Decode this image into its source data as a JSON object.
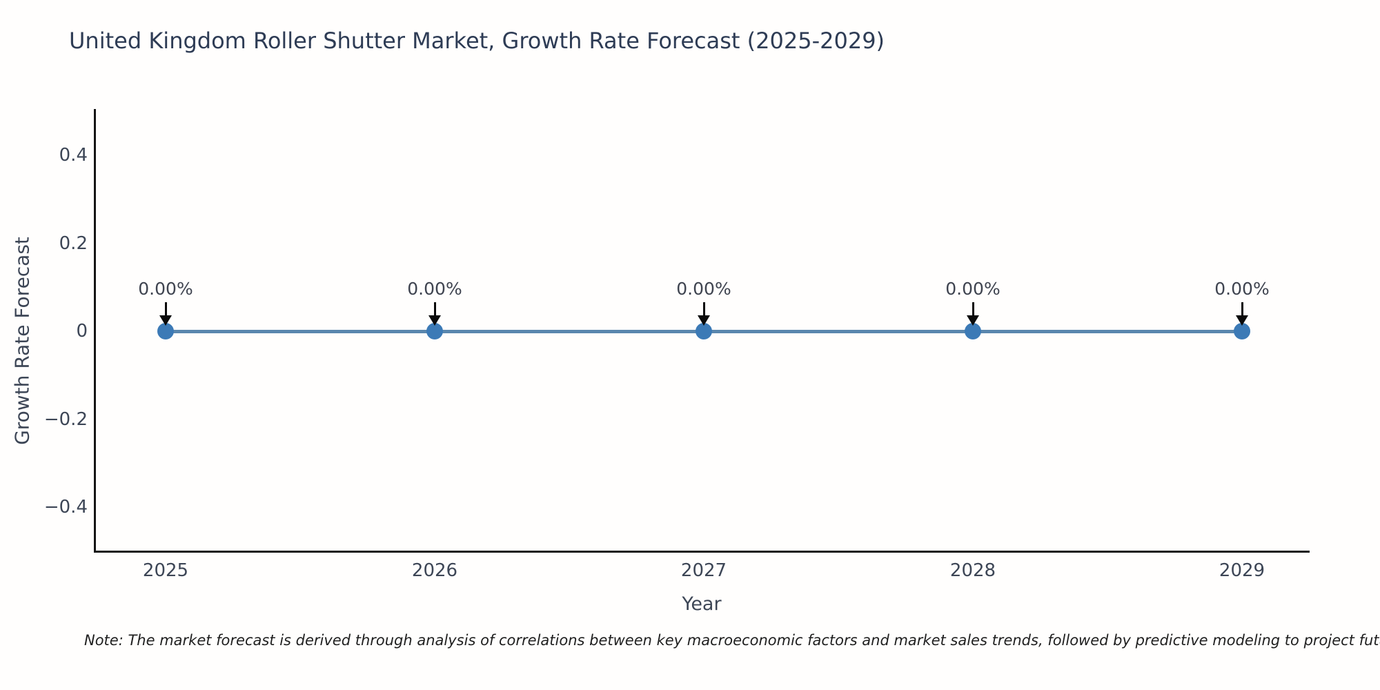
{
  "chart_data": {
    "type": "line",
    "title": "United Kingdom Roller Shutter Market, Growth Rate Forecast (2025-2029)",
    "xlabel": "Year",
    "ylabel": "Growth Rate Forecast",
    "categories": [
      "2025",
      "2026",
      "2027",
      "2028",
      "2029"
    ],
    "series": [
      {
        "name": "Growth Rate Forecast",
        "values": [
          0,
          0,
          0,
          0,
          0
        ],
        "point_labels": [
          "0.00%",
          "0.00%",
          "0.00%",
          "0.00%",
          "0.00%"
        ]
      }
    ],
    "ytick_labels": [
      "0.4",
      "0.2",
      "0",
      "−0.2",
      "−0.4"
    ],
    "ytick_values": [
      0.4,
      0.2,
      0,
      -0.2,
      -0.4
    ],
    "ylim": [
      -0.5,
      0.5
    ],
    "grid": false,
    "legend_position": "none",
    "note": "Note: The market forecast is derived through analysis of correlations between key macroeconomic factors and market sales trends, followed by predictive modeling to project future sales."
  },
  "colors": {
    "title": "#2e3c55",
    "tick_label": "#3d4656",
    "line": "#5a87ae",
    "marker": "#3c7ab6",
    "annotation_text": "#3f4450",
    "annotation_arrow": "#0a0a0a",
    "spine": "#141414",
    "background": "#fffefd"
  }
}
